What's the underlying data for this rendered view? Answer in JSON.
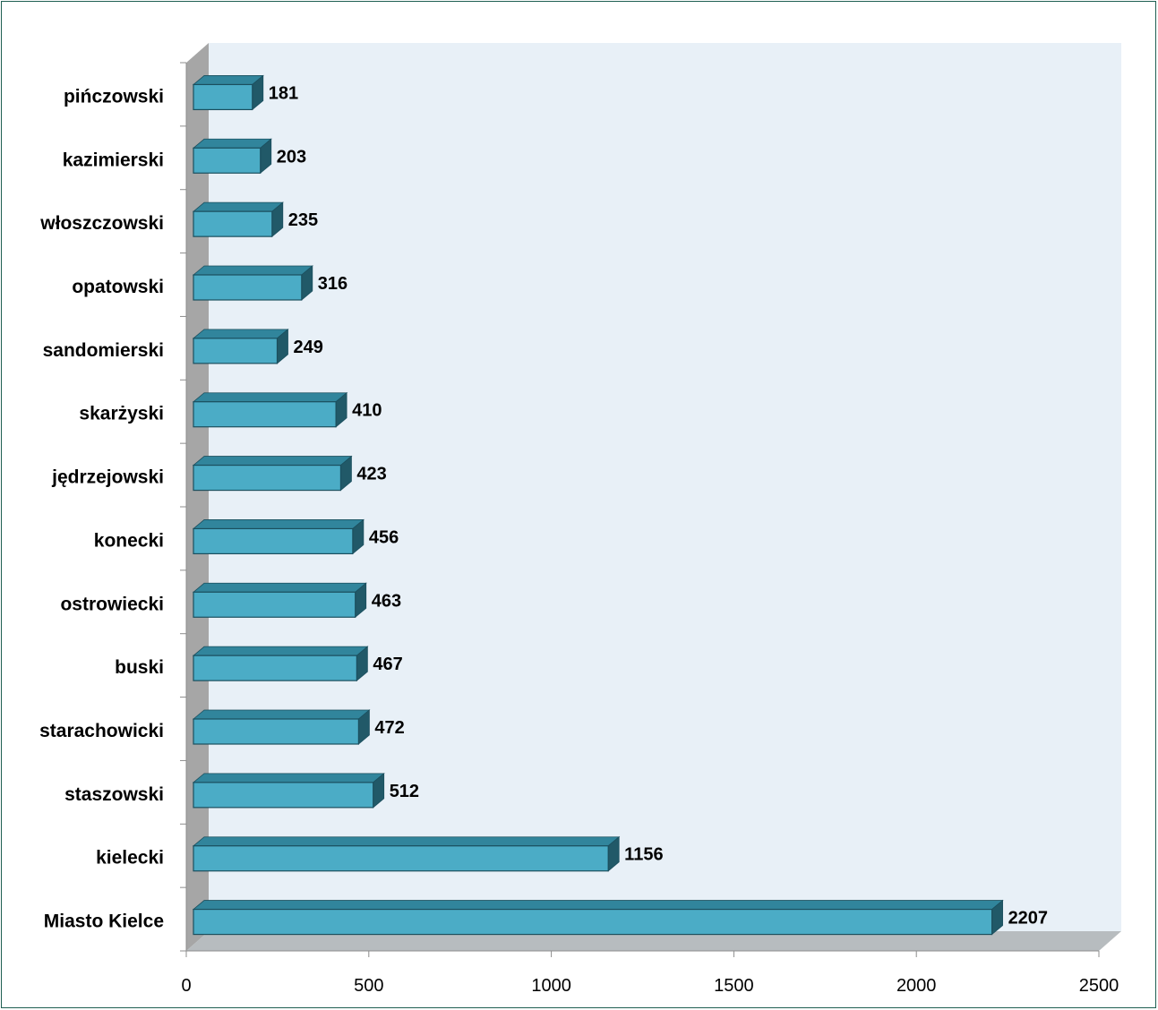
{
  "chart_data": {
    "type": "bar",
    "orientation": "horizontal",
    "three_d": true,
    "categories": [
      "pińczowski",
      "kazimierski",
      "włoszczowski",
      "opatowski",
      "sandomierski",
      "skarżyski",
      "jędrzejowski",
      "konecki",
      "ostrowiecki",
      "buski",
      "starachowicki",
      "staszowski",
      "kielecki",
      "Miasto Kielce"
    ],
    "values": [
      181,
      203,
      235,
      316,
      249,
      410,
      423,
      456,
      463,
      467,
      472,
      512,
      1156,
      2207
    ],
    "value_labels": [
      "181",
      "203",
      "235",
      "316",
      "249",
      "410",
      "423",
      "456",
      "463",
      "467",
      "472",
      "512",
      "1156",
      "2207"
    ],
    "xlim": [
      0,
      2500
    ],
    "x_ticks": [
      0,
      500,
      1000,
      1500,
      2000,
      2500
    ],
    "x_tick_labels": [
      "0",
      "500",
      "1000",
      "1500",
      "2000",
      "2500"
    ],
    "title": "",
    "xlabel": "",
    "ylabel": "",
    "legend": "none",
    "grid": false,
    "colors": {
      "bar_front": "#4bacc6",
      "bar_top": "#31859c",
      "bar_side": "#215968",
      "bar_outline": "#1b4f5e",
      "plot_back": "#e8f0f7",
      "left_wall": "#a6a6a6",
      "floor": "#b7bcbf",
      "frame": "#1f5f52"
    }
  }
}
